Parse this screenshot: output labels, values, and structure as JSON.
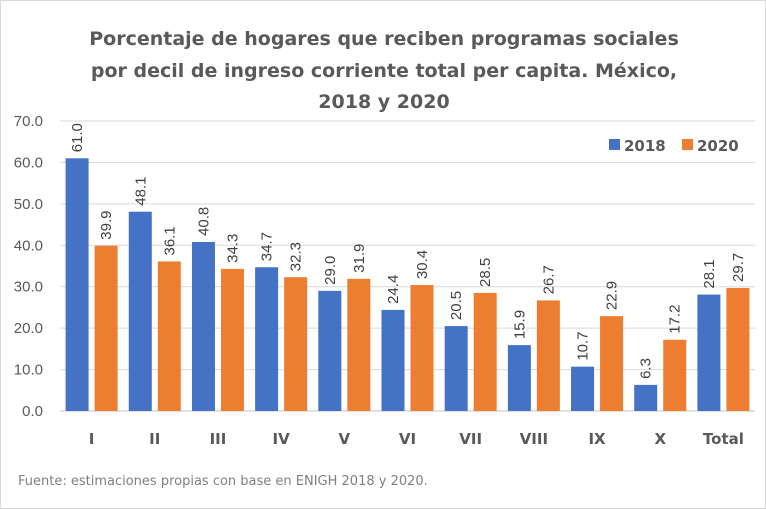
{
  "chart_data": {
    "type": "bar",
    "title_lines": [
      "Porcentaje de hogares que reciben programas sociales",
      "por decil de ingreso corriente total per capita. México,",
      "2018 y 2020"
    ],
    "categories": [
      "I",
      "II",
      "III",
      "IV",
      "V",
      "VI",
      "VII",
      "VIII",
      "IX",
      "X",
      "Total"
    ],
    "series": [
      {
        "name": "2018",
        "color": "#4472c4",
        "values": [
          61.0,
          48.1,
          40.8,
          34.7,
          29.0,
          24.4,
          20.5,
          15.9,
          10.7,
          6.3,
          28.1
        ]
      },
      {
        "name": "2020",
        "color": "#ed7d31",
        "values": [
          39.9,
          36.1,
          34.3,
          32.3,
          31.9,
          30.4,
          28.5,
          26.7,
          22.9,
          17.2,
          29.7
        ]
      }
    ],
    "yticks": [
      "0.0",
      "10.0",
      "20.0",
      "30.0",
      "40.0",
      "50.0",
      "60.0",
      "70.0"
    ],
    "ylim": [
      0,
      70
    ],
    "ytick_step": 10,
    "xlabel": "",
    "ylabel": "",
    "grid": true,
    "legend_position": "top-right",
    "data_label_format": "one-decimal, rotated vertical",
    "source": "Fuente: estimaciones propias con base en ENIGH 2018 y 2020."
  }
}
